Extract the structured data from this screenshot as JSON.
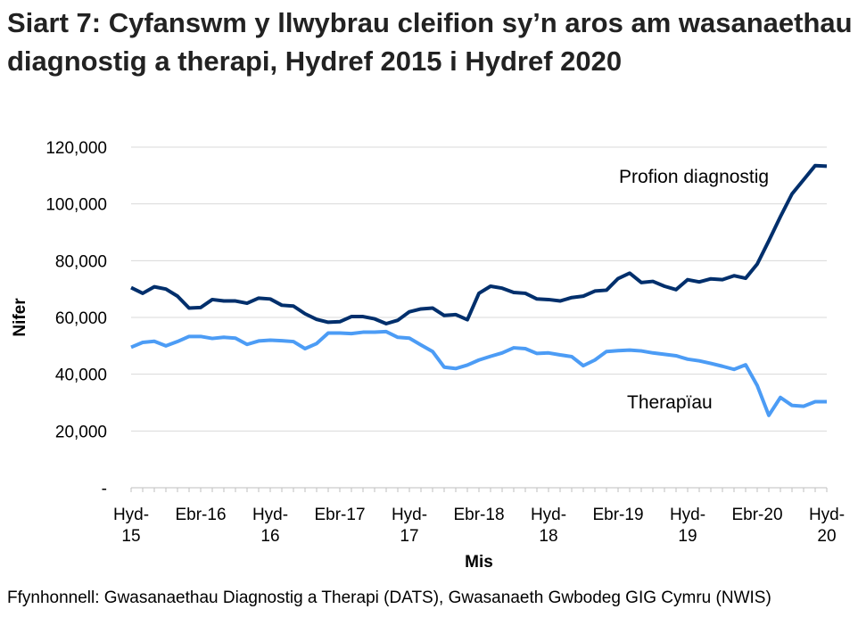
{
  "title": "Siart 7: Cyfanswm y llwybrau cleifion sy’n aros am wasanaethau diagnostig a therapi, Hydref 2015 i Hydref 2020",
  "source": "Ffynhonnell: Gwasanaethau Diagnostig a Therapi (DATS), Gwasanaeth Gwbodeg GIG Cymru (NWIS)",
  "chart_data": {
    "type": "line",
    "xlabel": "Mis",
    "ylabel": "Nifer",
    "ylim": [
      0,
      120000
    ],
    "grid": true,
    "yticks": [
      0,
      20000,
      40000,
      60000,
      80000,
      100000,
      120000
    ],
    "ytick_labels": [
      "-",
      "20,000",
      "40,000",
      "60,000",
      "80,000",
      "100,000",
      "120,000"
    ],
    "x_start": "2015-10",
    "x_end": "2020-10",
    "xtick_labels": [
      [
        "Hyd-",
        "15"
      ],
      [
        "Ebr-16",
        ""
      ],
      [
        "Hyd-",
        "16"
      ],
      [
        "Ebr-17",
        ""
      ],
      [
        "Hyd-",
        "17"
      ],
      [
        "Ebr-18",
        ""
      ],
      [
        "Hyd-",
        "18"
      ],
      [
        "Ebr-19",
        ""
      ],
      [
        "Hyd-",
        "19"
      ],
      [
        "Ebr-20",
        ""
      ],
      [
        "Hyd-",
        "20"
      ]
    ],
    "series": [
      {
        "name": "Profion diagnostig",
        "color": "#002f6c",
        "values": [
          70500,
          68500,
          70800,
          70000,
          67500,
          63300,
          63500,
          66300,
          65800,
          65800,
          65000,
          66800,
          66500,
          64300,
          64000,
          61300,
          59300,
          58300,
          58500,
          60300,
          60300,
          59500,
          57800,
          59000,
          62000,
          63000,
          63300,
          60700,
          61000,
          59200,
          68500,
          71000,
          70300,
          68800,
          68500,
          66500,
          66300,
          65800,
          67000,
          67500,
          69300,
          69600,
          73700,
          75600,
          72300,
          72700,
          71000,
          69800,
          73300,
          72500,
          73600,
          73300,
          74700,
          73800,
          78800,
          87000,
          95500,
          103500,
          108500,
          113500,
          113300
        ]
      },
      {
        "name": "Therapïau",
        "color": "#4c9cf5",
        "values": [
          49500,
          51200,
          51600,
          50000,
          51500,
          53300,
          53300,
          52600,
          53000,
          52700,
          50500,
          51700,
          52000,
          51800,
          51500,
          49000,
          50800,
          54500,
          54500,
          54300,
          54800,
          54800,
          55000,
          53000,
          52700,
          50300,
          48000,
          42500,
          42000,
          43200,
          45000,
          46300,
          47500,
          49300,
          49000,
          47300,
          47500,
          46800,
          46200,
          43000,
          45000,
          48000,
          48300,
          48500,
          48200,
          47500,
          47000,
          46500,
          45300,
          44700,
          43800,
          42800,
          41700,
          43300,
          36000,
          25500,
          31800,
          29000,
          28700,
          30300,
          30300
        ]
      }
    ]
  }
}
